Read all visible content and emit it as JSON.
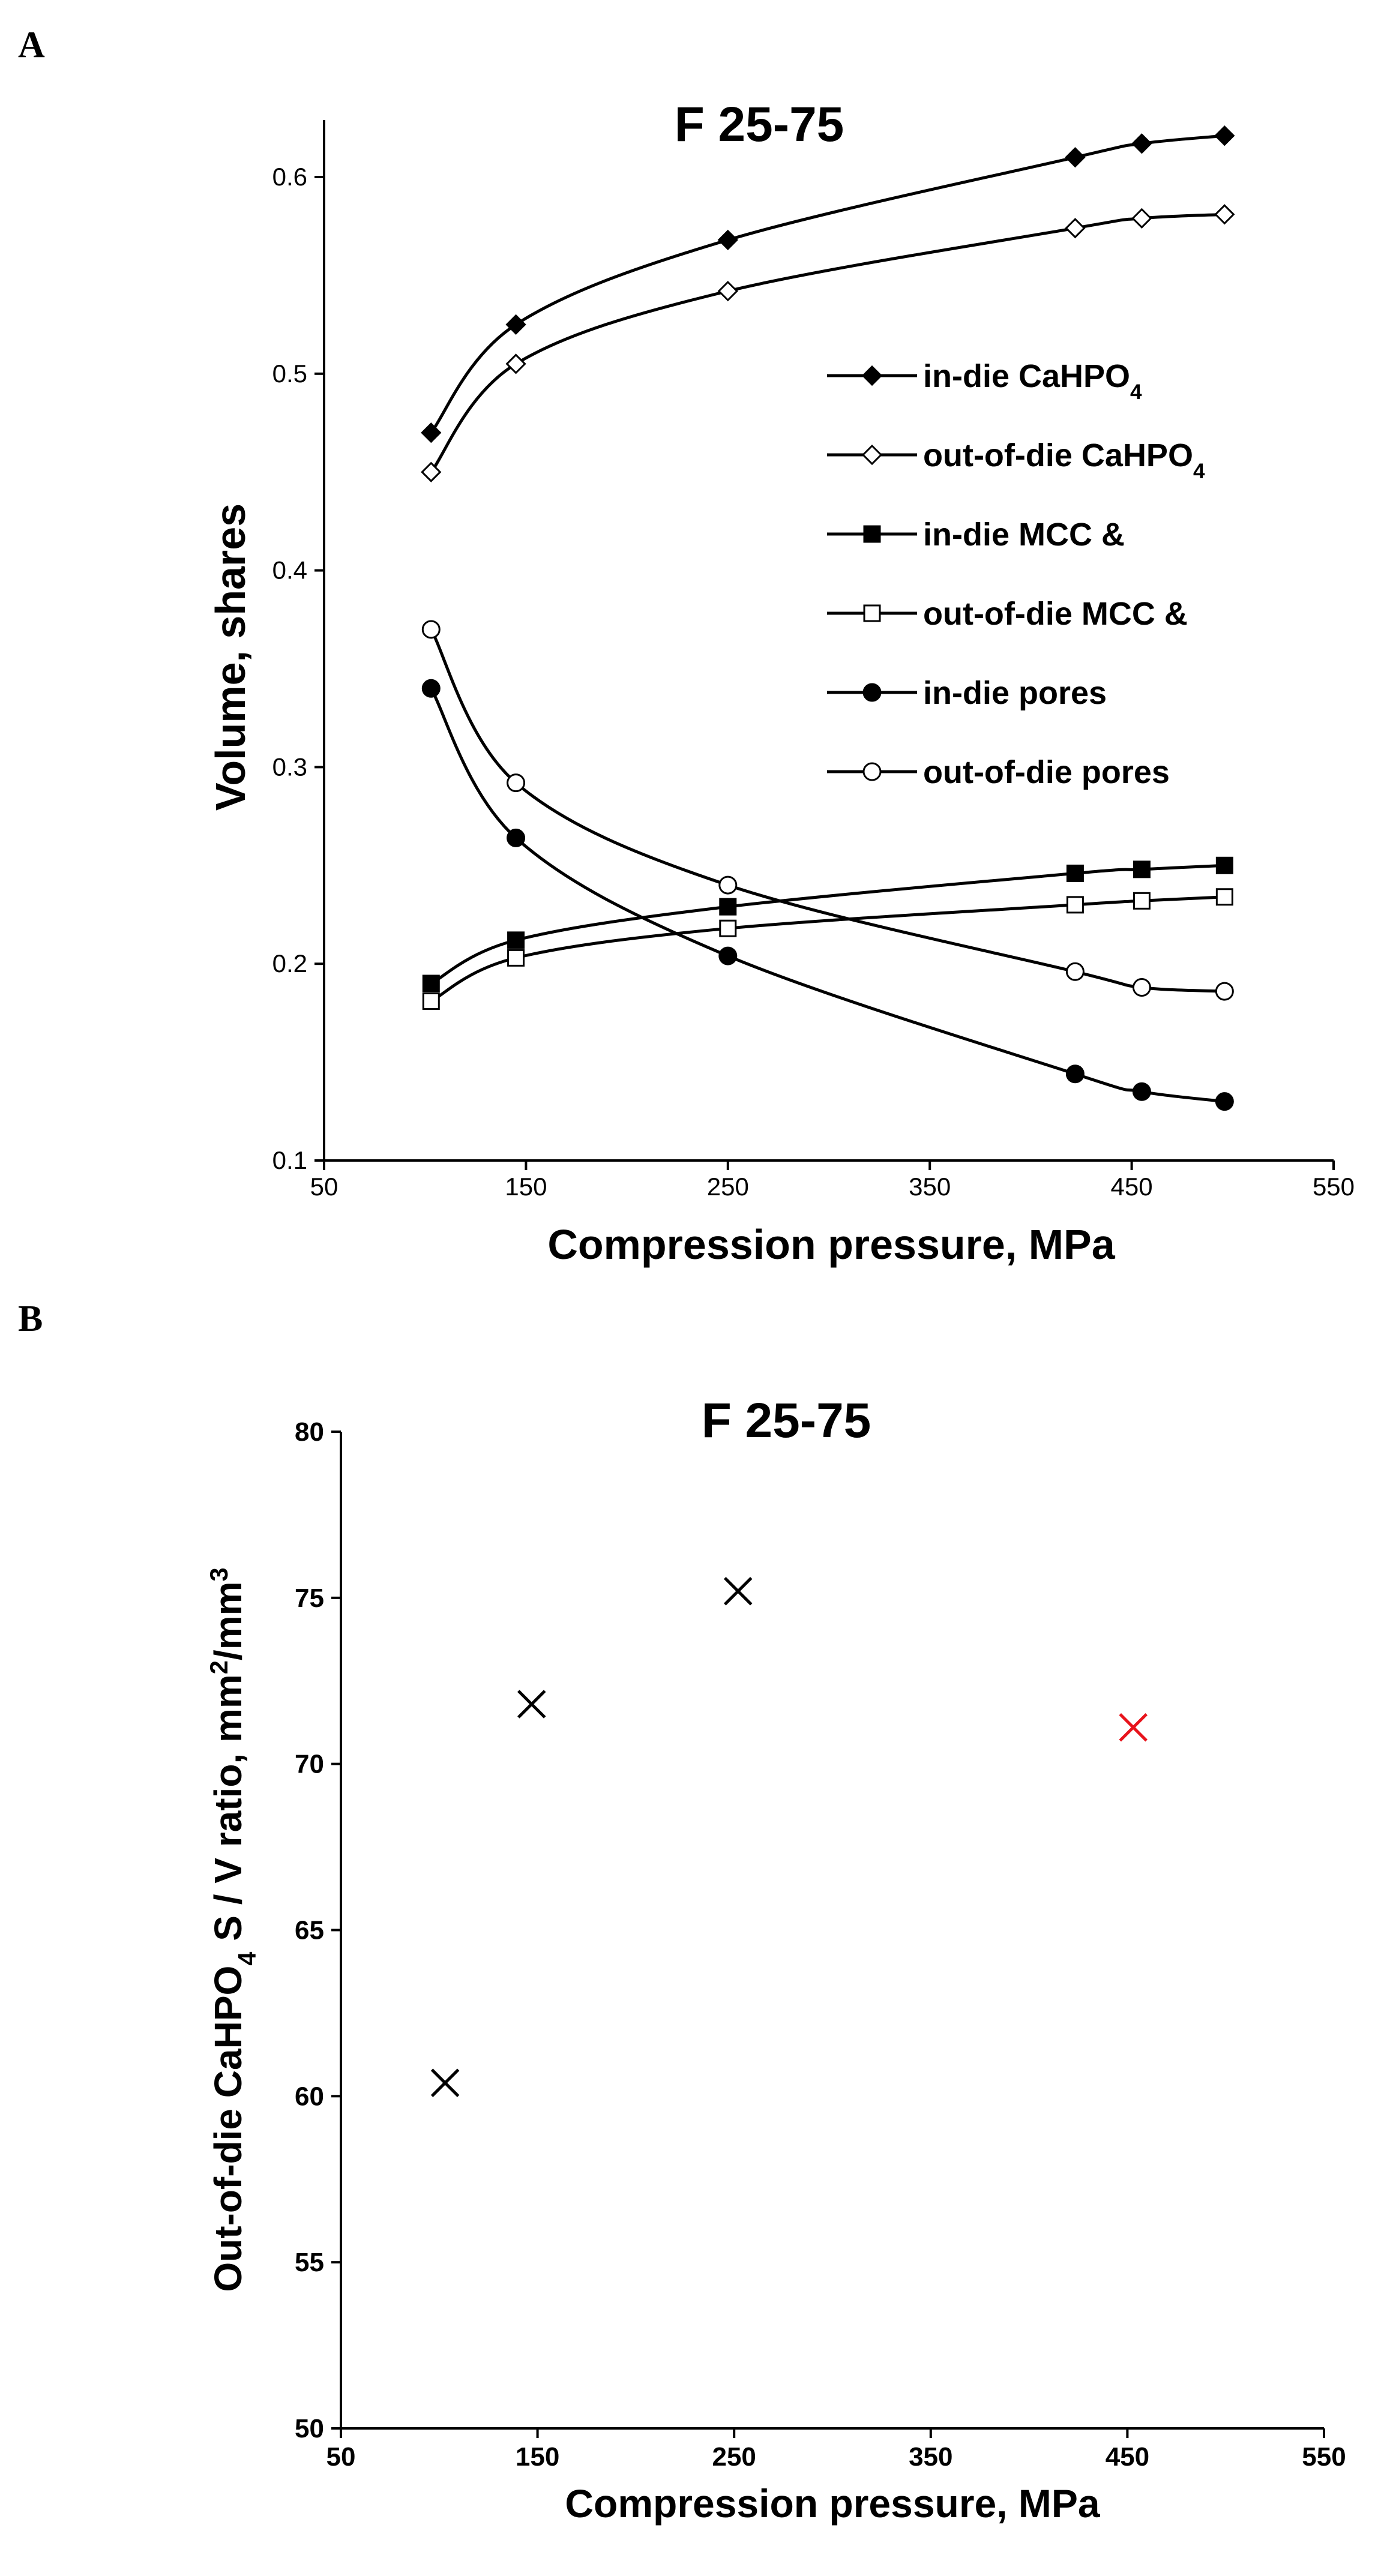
{
  "chart_data": [
    {
      "panel_label": "A",
      "type": "line",
      "title": "F 25-75",
      "xlabel": "Compression pressure, MPa",
      "ylabel": "Volume, shares",
      "xlim": [
        50,
        550
      ],
      "ylim": [
        0.1,
        0.6
      ],
      "xticks": [
        "50",
        "150",
        "250",
        "350",
        "450",
        "550"
      ],
      "yticks": [
        "0.1",
        "0.2",
        "0.3",
        "0.4",
        "0.5",
        "0.6"
      ],
      "grid": false,
      "legend_position": "right",
      "x": [
        103,
        145,
        250,
        422,
        455,
        496
      ],
      "series": [
        {
          "name": "in-die CaHPO4",
          "marker": "diamond-filled",
          "values": [
            0.47,
            0.525,
            0.568,
            0.61,
            0.617,
            0.621
          ]
        },
        {
          "name": "out-of-die CaHPO4",
          "marker": "diamond-open",
          "values": [
            0.45,
            0.505,
            0.542,
            0.574,
            0.579,
            0.581
          ]
        },
        {
          "name": "in-die MCC &",
          "marker": "square-filled",
          "values": [
            0.19,
            0.212,
            0.229,
            0.246,
            0.248,
            0.25
          ]
        },
        {
          "name": "out-of-die MCC &",
          "marker": "square-open",
          "values": [
            0.181,
            0.203,
            0.218,
            0.23,
            0.232,
            0.234
          ]
        },
        {
          "name": "in-die pores",
          "marker": "circle-filled",
          "values": [
            0.34,
            0.264,
            0.204,
            0.144,
            0.135,
            0.13
          ]
        },
        {
          "name": "out-of-die pores",
          "marker": "circle-open",
          "values": [
            0.37,
            0.292,
            0.24,
            0.196,
            0.188,
            0.186
          ]
        }
      ]
    },
    {
      "panel_label": "B",
      "type": "scatter",
      "title": "F 25-75",
      "xlabel": "Compression pressure, MPa",
      "ylabel": "Out-of-die CaHPO4 S / V ratio, mm2/mm3",
      "xlim": [
        50,
        550
      ],
      "ylim": [
        50,
        80
      ],
      "xticks": [
        "50",
        "150",
        "250",
        "350",
        "450",
        "550"
      ],
      "yticks": [
        "50",
        "55",
        "60",
        "65",
        "70",
        "75",
        "80"
      ],
      "grid": false,
      "points": [
        {
          "x": 103,
          "y": 60.4,
          "color": "#000000"
        },
        {
          "x": 147,
          "y": 71.8,
          "color": "#000000"
        },
        {
          "x": 252,
          "y": 75.2,
          "color": "#000000"
        },
        {
          "x": 453,
          "y": 71.1,
          "color": "#e8141c"
        }
      ]
    }
  ]
}
